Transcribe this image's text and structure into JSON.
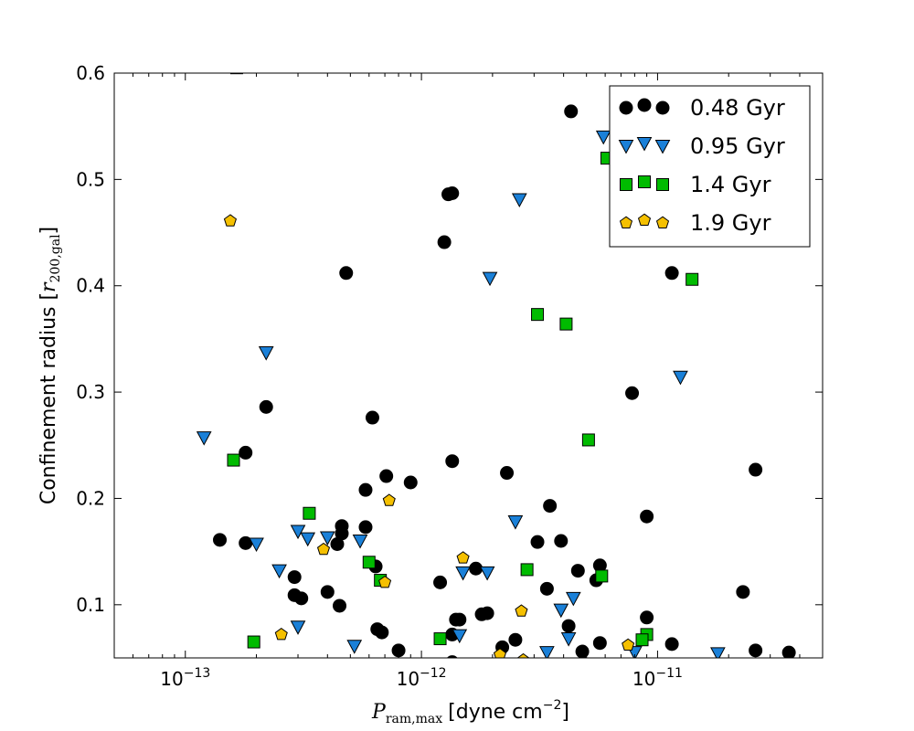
{
  "chart_data": {
    "type": "scatter",
    "title": "",
    "xlabel": "P_ram,max [dyne cm^-2]",
    "xlabel_symbol": "P",
    "xlabel_subscript": "ram,max",
    "xlabel_units": "[dyne cm",
    "xlabel_exponent": "−2",
    "xlabel_close": "]",
    "ylabel": "Confinement radius [r_200,gal]",
    "ylabel_text": "Confinement radius [",
    "ylabel_symbol": "r",
    "ylabel_subscript": "200,gal",
    "ylabel_close": "]",
    "xscale": "log",
    "xlim": [
      5e-14,
      5e-11
    ],
    "ylim": [
      0.05,
      0.6
    ],
    "x_ticks": [
      {
        "value": 1e-13,
        "base": "10",
        "exp": "−13"
      },
      {
        "value": 1e-12,
        "base": "10",
        "exp": "−12"
      },
      {
        "value": 1e-11,
        "base": "10",
        "exp": "−11"
      }
    ],
    "y_ticks": [
      {
        "value": 0.1,
        "label": "0.1"
      },
      {
        "value": 0.2,
        "label": "0.2"
      },
      {
        "value": 0.3,
        "label": "0.3"
      },
      {
        "value": 0.4,
        "label": "0.4"
      },
      {
        "value": 0.5,
        "label": "0.5"
      },
      {
        "value": 0.6,
        "label": "0.6"
      }
    ],
    "legend_position": "top-right",
    "series": [
      {
        "name": "0.48 Gyr",
        "marker": "circle",
        "color": "#000000",
        "points": [
          [
            4.3e-12,
            0.564
          ],
          [
            1.3e-12,
            0.486
          ],
          [
            1.35e-12,
            0.487
          ],
          [
            1.25e-12,
            0.441
          ],
          [
            4.8e-13,
            0.412
          ],
          [
            1.15e-11,
            0.412
          ],
          [
            7.8e-12,
            0.299
          ],
          [
            2.2e-13,
            0.286
          ],
          [
            6.2e-13,
            0.276
          ],
          [
            1.8e-13,
            0.243
          ],
          [
            1.35e-12,
            0.235
          ],
          [
            2.6e-11,
            0.227
          ],
          [
            2.3e-12,
            0.224
          ],
          [
            7.1e-13,
            0.221
          ],
          [
            9e-13,
            0.215
          ],
          [
            5.8e-13,
            0.208
          ],
          [
            3.5e-12,
            0.193
          ],
          [
            9e-12,
            0.183
          ],
          [
            4.6e-13,
            0.174
          ],
          [
            5.8e-13,
            0.173
          ],
          [
            4.6e-13,
            0.167
          ],
          [
            1.4e-13,
            0.161
          ],
          [
            1.8e-13,
            0.158
          ],
          [
            4.4e-13,
            0.157
          ],
          [
            3.1e-12,
            0.159
          ],
          [
            3.9e-12,
            0.16
          ],
          [
            5.7e-12,
            0.137
          ],
          [
            6.4e-13,
            0.136
          ],
          [
            1.7e-12,
            0.134
          ],
          [
            4.6e-12,
            0.132
          ],
          [
            2.9e-13,
            0.126
          ],
          [
            5.5e-12,
            0.123
          ],
          [
            1.2e-12,
            0.121
          ],
          [
            3.4e-12,
            0.115
          ],
          [
            4e-13,
            0.112
          ],
          [
            2.3e-11,
            0.112
          ],
          [
            2.9e-13,
            0.109
          ],
          [
            3.1e-13,
            0.106
          ],
          [
            4.5e-13,
            0.099
          ],
          [
            1.8e-12,
            0.091
          ],
          [
            1.9e-12,
            0.092
          ],
          [
            9e-12,
            0.088
          ],
          [
            1.4e-12,
            0.086
          ],
          [
            1.45e-12,
            0.086
          ],
          [
            4.2e-12,
            0.08
          ],
          [
            6.5e-13,
            0.077
          ],
          [
            6.8e-13,
            0.074
          ],
          [
            1.35e-12,
            0.072
          ],
          [
            2.5e-12,
            0.067
          ],
          [
            5.7e-12,
            0.064
          ],
          [
            1.15e-11,
            0.063
          ],
          [
            2.2e-12,
            0.06
          ],
          [
            8e-13,
            0.057
          ],
          [
            4.8e-12,
            0.056
          ],
          [
            2.6e-11,
            0.057
          ],
          [
            3.6e-11,
            0.055
          ],
          [
            1.35e-12,
            0.046
          ]
        ]
      },
      {
        "name": "0.95 Gyr",
        "marker": "triangle-down",
        "color": "#1a80d8",
        "points": [
          [
            5.9e-12,
            0.54
          ],
          [
            2.6e-12,
            0.481
          ],
          [
            1.95e-12,
            0.407
          ],
          [
            2.2e-13,
            0.337
          ],
          [
            1.25e-11,
            0.314
          ],
          [
            1.2e-13,
            0.257
          ],
          [
            2.5e-12,
            0.178
          ],
          [
            3e-13,
            0.169
          ],
          [
            4e-13,
            0.163
          ],
          [
            3.3e-13,
            0.162
          ],
          [
            5.5e-13,
            0.16
          ],
          [
            2e-13,
            0.157
          ],
          [
            2.5e-13,
            0.132
          ],
          [
            1.5e-12,
            0.13
          ],
          [
            1.9e-12,
            0.13
          ],
          [
            4.4e-12,
            0.106
          ],
          [
            3.9e-12,
            0.095
          ],
          [
            3e-13,
            0.079
          ],
          [
            1.45e-12,
            0.071
          ],
          [
            4.2e-12,
            0.068
          ],
          [
            5.2e-13,
            0.061
          ],
          [
            3.4e-12,
            0.055
          ],
          [
            8e-12,
            0.055
          ],
          [
            1.8e-11,
            0.054
          ]
        ]
      },
      {
        "name": "1.4 Gyr",
        "marker": "square",
        "color": "#00bb00",
        "points": [
          [
            1.65e-13,
            0.605
          ],
          [
            6.1e-12,
            0.52
          ],
          [
            1.4e-11,
            0.406
          ],
          [
            3.1e-12,
            0.373
          ],
          [
            4.1e-12,
            0.364
          ],
          [
            5.1e-12,
            0.255
          ],
          [
            1.6e-13,
            0.236
          ],
          [
            3.35e-13,
            0.186
          ],
          [
            6e-13,
            0.14
          ],
          [
            2.8e-12,
            0.133
          ],
          [
            5.8e-12,
            0.127
          ],
          [
            6.7e-13,
            0.123
          ],
          [
            9e-12,
            0.072
          ],
          [
            1.2e-12,
            0.068
          ],
          [
            8.6e-12,
            0.067
          ],
          [
            1.95e-13,
            0.065
          ]
        ]
      },
      {
        "name": "1.9 Gyr",
        "marker": "pentagon",
        "color": "#f5c000",
        "points": [
          [
            1.55e-13,
            0.461
          ],
          [
            7.3e-13,
            0.198
          ],
          [
            3.85e-13,
            0.152
          ],
          [
            1.5e-12,
            0.144
          ],
          [
            7e-13,
            0.121
          ],
          [
            2.65e-12,
            0.094
          ],
          [
            2.55e-13,
            0.072
          ],
          [
            7.5e-12,
            0.062
          ],
          [
            2.15e-12,
            0.053
          ],
          [
            2.7e-12,
            0.048
          ]
        ]
      }
    ]
  }
}
